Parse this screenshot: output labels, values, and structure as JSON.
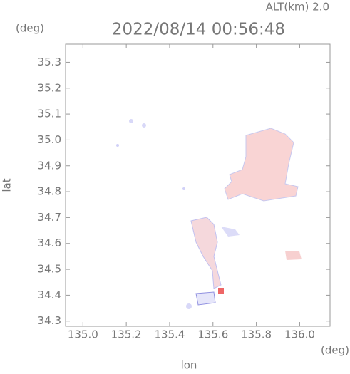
{
  "chart_data": {
    "type": "map",
    "title": "2022/08/14 00:56:48",
    "subtitle": "ALT(km) 2.0",
    "y_unit": "(deg)",
    "x_unit": "(deg)",
    "y_label": "lat",
    "x_label": "lon",
    "xlim": [
      134.92,
      136.14
    ],
    "ylim": [
      34.28,
      35.37
    ],
    "xticks": [
      {
        "value": 135,
        "label": "135.0"
      },
      135.2,
      135.4,
      135.6,
      135.8,
      {
        "value": 136,
        "label": "136.0"
      }
    ],
    "yticks": [
      34.3,
      34.4,
      34.5,
      34.6,
      34.7,
      34.8,
      34.9,
      {
        "value": 35,
        "label": "35.0"
      },
      35.1,
      35.2,
      35.3
    ]
  }
}
